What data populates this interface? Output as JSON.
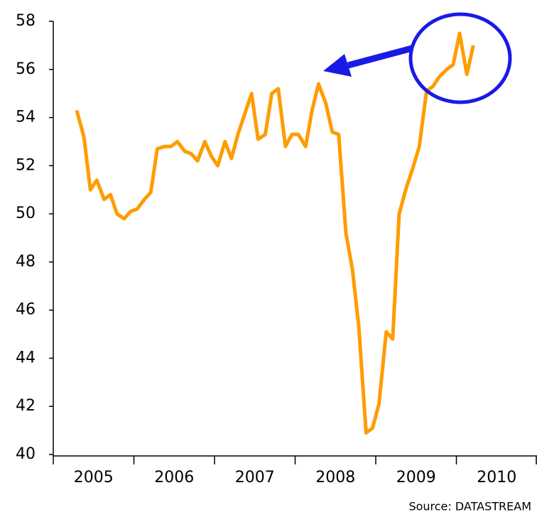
{
  "chart_data": {
    "type": "line",
    "source": "Source:  DATASTREAM",
    "x": [
      2005.29,
      2005.38,
      2005.46,
      2005.54,
      2005.63,
      2005.71,
      2005.79,
      2005.88,
      2005.96,
      2006.04,
      2006.13,
      2006.21,
      2006.29,
      2006.38,
      2006.46,
      2006.54,
      2006.63,
      2006.71,
      2006.79,
      2006.88,
      2006.96,
      2007.04,
      2007.13,
      2007.21,
      2007.29,
      2007.38,
      2007.46,
      2007.54,
      2007.63,
      2007.71,
      2007.79,
      2007.88,
      2007.96,
      2008.04,
      2008.13,
      2008.21,
      2008.29,
      2008.38,
      2008.46,
      2008.54,
      2008.63,
      2008.71,
      2008.79,
      2008.88,
      2008.96,
      2009.04,
      2009.13,
      2009.21,
      2009.29,
      2009.38,
      2009.46,
      2009.54,
      2009.63,
      2009.71,
      2009.79,
      2009.88,
      2009.96,
      2010.04,
      2010.13,
      2010.21
    ],
    "series": [
      {
        "color": "#ff9c00",
        "values": [
          54.3,
          53.2,
          51.0,
          51.4,
          50.6,
          50.8,
          50.0,
          49.8,
          50.1,
          50.2,
          50.6,
          50.9,
          52.7,
          52.8,
          52.8,
          53.0,
          52.6,
          52.5,
          52.2,
          53.0,
          52.4,
          52.0,
          53.0,
          52.3,
          53.3,
          54.2,
          55.0,
          53.1,
          53.3,
          55.0,
          55.2,
          52.8,
          53.3,
          53.3,
          52.8,
          54.3,
          55.4,
          54.6,
          53.4,
          53.3,
          49.2,
          47.7,
          45.3,
          40.9,
          41.1,
          42.1,
          45.1,
          44.8,
          50.0,
          51.1,
          51.9,
          52.8,
          55.1,
          55.3,
          55.7,
          56.0,
          56.2,
          57.5,
          55.8,
          57.0
        ]
      }
    ],
    "xlim": [
      2005,
      2011
    ],
    "xtick_marks": [
      2005,
      2006,
      2007,
      2008,
      2009,
      2010,
      2011
    ],
    "xticks": [
      {
        "value": 2005.5,
        "label": "2005"
      },
      {
        "value": 2006.5,
        "label": "2006"
      },
      {
        "value": 2007.5,
        "label": "2007"
      },
      {
        "value": 2008.5,
        "label": "2008"
      },
      {
        "value": 2009.5,
        "label": "2009"
      },
      {
        "value": 2010.5,
        "label": "2010"
      }
    ],
    "ylim": [
      40,
      58
    ],
    "yticks": [
      40,
      42,
      44,
      46,
      48,
      50,
      52,
      54,
      56,
      58
    ],
    "grid": false
  }
}
